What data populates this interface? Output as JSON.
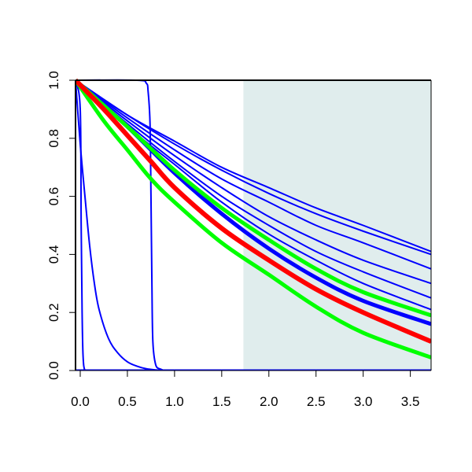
{
  "chart_data": {
    "type": "line",
    "title": "",
    "xlabel": "",
    "ylabel": "",
    "xlim": [
      -0.05,
      3.72
    ],
    "ylim": [
      0,
      1
    ],
    "x_ticks": [
      "0.0",
      "0.5",
      "1.0",
      "1.5",
      "2.0",
      "2.5",
      "3.0",
      "3.5"
    ],
    "y_ticks": [
      "0.0",
      "0.2",
      "0.4",
      "0.6",
      "0.8",
      "1.0"
    ],
    "grid": false,
    "legend": "none",
    "shaded_region": {
      "x_start": 1.73,
      "x_end": 3.72,
      "color": "#e0eded"
    },
    "series": [
      {
        "color": "#0000ff",
        "width": 2,
        "x": [
          -0.05,
          0.0,
          0.01,
          0.02,
          0.03,
          0.05,
          0.1
        ],
        "y": [
          1.0,
          0.9,
          0.5,
          0.2,
          0.05,
          0.0,
          0.0
        ]
      },
      {
        "color": "#0000ff",
        "width": 2,
        "x": [
          -0.05,
          0.0,
          0.05,
          0.1,
          0.15,
          0.2,
          0.3,
          0.4,
          0.5,
          0.6,
          0.7,
          0.8,
          0.9
        ],
        "y": [
          1.0,
          0.78,
          0.6,
          0.43,
          0.3,
          0.21,
          0.11,
          0.06,
          0.03,
          0.015,
          0.006,
          0.002,
          0.0
        ]
      },
      {
        "color": "#0000ff",
        "width": 2,
        "x": [
          -0.05,
          0.6,
          0.7,
          0.72,
          0.74,
          0.75,
          0.76,
          0.77,
          0.8,
          0.85,
          0.9,
          1.0
        ],
        "y": [
          1.0,
          1.0,
          0.99,
          0.96,
          0.85,
          0.6,
          0.3,
          0.1,
          0.02,
          0.005,
          0.0,
          0.0
        ]
      },
      {
        "color": "#0000ff",
        "width": 3,
        "x": [
          -0.05,
          3.72
        ],
        "y": [
          0.0,
          0.0
        ]
      },
      {
        "color": "#0000ff",
        "width": 2,
        "x": [
          -0.05,
          0.5,
          1.0,
          1.5,
          2.0,
          2.5,
          3.0,
          3.72
        ],
        "y": [
          1.0,
          0.88,
          0.79,
          0.7,
          0.63,
          0.56,
          0.5,
          0.41
        ]
      },
      {
        "color": "#0000ff",
        "width": 2,
        "x": [
          -0.05,
          0.5,
          1.0,
          1.5,
          2.0,
          2.5,
          3.0,
          3.72
        ],
        "y": [
          1.0,
          0.88,
          0.78,
          0.69,
          0.61,
          0.54,
          0.48,
          0.4
        ]
      },
      {
        "color": "#0000ff",
        "width": 2,
        "x": [
          -0.05,
          0.5,
          1.0,
          1.5,
          2.0,
          2.5,
          3.0,
          3.72
        ],
        "y": [
          1.0,
          0.87,
          0.76,
          0.66,
          0.58,
          0.5,
          0.44,
          0.35
        ]
      },
      {
        "color": "#0000ff",
        "width": 2,
        "x": [
          -0.05,
          0.5,
          1.0,
          1.5,
          2.0,
          2.5,
          3.0,
          3.72
        ],
        "y": [
          1.0,
          0.86,
          0.74,
          0.63,
          0.53,
          0.45,
          0.38,
          0.3
        ]
      },
      {
        "color": "#0000ff",
        "width": 2,
        "x": [
          -0.05,
          0.5,
          1.0,
          1.5,
          2.0,
          2.5,
          3.0,
          3.72
        ],
        "y": [
          1.0,
          0.85,
          0.72,
          0.6,
          0.5,
          0.41,
          0.34,
          0.25
        ]
      },
      {
        "color": "#0000ff",
        "width": 2,
        "x": [
          -0.05,
          0.5,
          1.0,
          1.5,
          2.0,
          2.5,
          3.0,
          3.72
        ],
        "y": [
          1.0,
          0.84,
          0.71,
          0.58,
          0.47,
          0.38,
          0.3,
          0.21
        ]
      },
      {
        "color": "#0000ff",
        "width": 5,
        "x": [
          -0.05,
          0.5,
          1.0,
          1.5,
          2.0,
          2.5,
          3.0,
          3.72
        ],
        "y": [
          1.0,
          0.84,
          0.68,
          0.54,
          0.42,
          0.32,
          0.24,
          0.16
        ]
      },
      {
        "color": "#00ff00",
        "width": 5,
        "x": [
          -0.05,
          0.5,
          1.0,
          1.5,
          2.0,
          2.5,
          3.0,
          3.72
        ],
        "y": [
          1.0,
          0.84,
          0.69,
          0.56,
          0.45,
          0.35,
          0.27,
          0.19
        ]
      },
      {
        "color": "#00ff00",
        "width": 5,
        "x": [
          -0.05,
          0.25,
          0.5,
          0.75,
          1.0,
          1.5,
          2.0,
          2.5,
          3.0,
          3.72
        ],
        "y": [
          1.0,
          0.86,
          0.76,
          0.66,
          0.58,
          0.44,
          0.33,
          0.22,
          0.13,
          0.045
        ]
      },
      {
        "color": "#ff0000",
        "width": 6,
        "x": [
          -0.05,
          0.25,
          0.5,
          0.75,
          1.0,
          1.5,
          2.0,
          2.5,
          3.0,
          3.72
        ],
        "y": [
          1.0,
          0.9,
          0.81,
          0.72,
          0.63,
          0.49,
          0.38,
          0.28,
          0.2,
          0.1
        ]
      }
    ]
  }
}
